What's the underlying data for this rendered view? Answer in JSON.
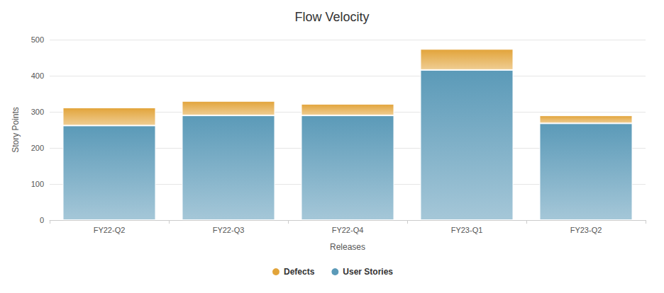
{
  "chart_data": {
    "type": "bar",
    "title": "Flow Velocity",
    "x_label": "Releases",
    "y_label": "Story Points",
    "categories": [
      "FY22-Q2",
      "FY22-Q3",
      "FY22-Q4",
      "FY23-Q1",
      "FY23-Q2"
    ],
    "series": [
      {
        "name": "User Stories",
        "color": "#5b9ab8",
        "values": [
          262,
          290,
          290,
          416,
          268
        ]
      },
      {
        "name": "Defects",
        "color": "#e2a43a",
        "values": [
          50,
          40,
          32,
          58,
          22
        ]
      }
    ],
    "stacked": true,
    "ylim": [
      0,
      500
    ],
    "yticks": [
      0,
      100,
      200,
      300,
      400,
      500
    ],
    "grid": true,
    "legend": "bottom"
  }
}
